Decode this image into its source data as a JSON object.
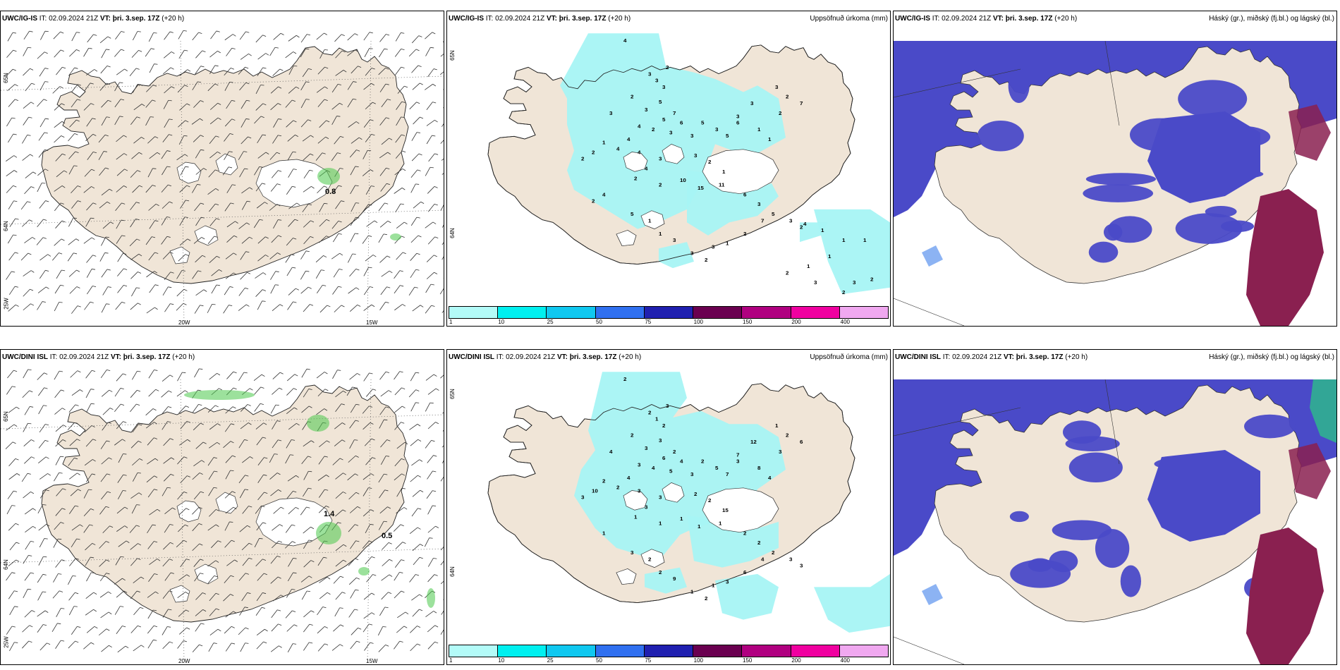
{
  "panels": [
    {
      "id": "r1c1",
      "model": "UWC/IG-IS",
      "header": {
        "it_label": "IT:",
        "it_value": "02.09.2024 21Z",
        "vt_label": "VT:",
        "vt_value": "þri. 3.sep. 17Z",
        "lead": "(+20 h)"
      },
      "title": "",
      "kind": "wind",
      "axis_labels": {
        "lat_top": "65N",
        "lat_bottom": "64N",
        "lon_left": "20W",
        "lon_right": "15W",
        "corner": "25W"
      },
      "values": [
        "0.8"
      ]
    },
    {
      "id": "r1c2",
      "model": "UWC/IG-IS",
      "header": {
        "it_label": "IT:",
        "it_value": "02.09.2024 21Z",
        "vt_label": "VT:",
        "vt_value": "þri. 3.sep. 17Z",
        "lead": "(+20 h)"
      },
      "title": "Uppsöfnuð úrkoma (mm)",
      "kind": "precip",
      "axis_labels": {
        "lat_top": "65N",
        "lat_bottom": "64N"
      },
      "values": [
        "4",
        "2",
        "3",
        "3",
        "3",
        "2",
        "5",
        "3",
        "7",
        "5",
        "6",
        "4",
        "2",
        "3",
        "3",
        "5",
        "3",
        "5",
        "6",
        "3",
        "4",
        "4",
        "4",
        "3",
        "1",
        "2",
        "2",
        "3",
        "2",
        "1",
        "3",
        "3",
        "1",
        "1",
        "2",
        "3",
        "2",
        "7",
        "4",
        "2",
        "2",
        "10",
        "15",
        "11",
        "6",
        "3",
        "5",
        "3",
        "2",
        "7",
        "2",
        "1",
        "3",
        "2",
        "3",
        "3",
        "1",
        "1",
        "5",
        "4",
        "2",
        "1",
        "1",
        "1",
        "2",
        "3",
        "2",
        "1",
        "2",
        "3",
        "4",
        "1"
      ]
    },
    {
      "id": "r1c3",
      "model": "UWC/IG-IS",
      "header": {
        "it_label": "IT:",
        "it_value": "02.09.2024 21Z",
        "vt_label": "VT:",
        "vt_value": "þri. 3.sep. 17Z",
        "lead": "(+20 h)"
      },
      "title": "Háský (gr.), miðský (fj.bl.) og lágský (bl.)",
      "kind": "cloud"
    },
    {
      "id": "r2c1",
      "model": "UWC/DINI ISL",
      "header": {
        "it_label": "IT:",
        "it_value": "02.09.2024 21Z",
        "vt_label": "VT:",
        "vt_value": "þri. 3.sep. 17Z",
        "lead": "(+20 h)"
      },
      "title": "",
      "kind": "wind",
      "axis_labels": {
        "lat_top": "65N",
        "lat_bottom": "64N",
        "lon_left": "20W",
        "lon_right": "15W",
        "corner": "25W"
      },
      "values": [
        "1.4",
        "0.5"
      ]
    },
    {
      "id": "r2c2",
      "model": "UWC/DINI ISL",
      "header": {
        "it_label": "IT:",
        "it_value": "02.09.2024 21Z",
        "vt_label": "VT:",
        "vt_value": "þri. 3.sep. 17Z",
        "lead": "(+20 h)"
      },
      "title": "Uppsöfnuð úrkoma (mm)",
      "kind": "precip",
      "axis_labels": {
        "lat_top": "65N",
        "lat_bottom": "64N"
      },
      "values": [
        "2",
        "3",
        "2",
        "1",
        "2",
        "2",
        "3",
        "3",
        "2",
        "6",
        "4",
        "3",
        "4",
        "5",
        "3",
        "2",
        "5",
        "7",
        "3",
        "4",
        "4",
        "2",
        "3",
        "3",
        "2",
        "10",
        "3",
        "2",
        "2",
        "15",
        "7",
        "12",
        "8",
        "4",
        "3",
        "1",
        "2",
        "6",
        "3",
        "1",
        "1",
        "1",
        "1",
        "1",
        "2",
        "2",
        "2",
        "3",
        "3",
        "4",
        "6",
        "3",
        "1",
        "2",
        "1",
        "9",
        "2",
        "2",
        "3",
        "1"
      ]
    },
    {
      "id": "r2c3",
      "model": "UWC/DINI ISL",
      "header": {
        "it_label": "IT:",
        "it_value": "02.09.2024 21Z",
        "vt_label": "VT:",
        "vt_value": "þri. 3.sep. 17Z",
        "lead": "(+20 h)"
      },
      "title": "Háský (gr.), miðský (fj.bl.) og lágský (bl.)",
      "kind": "cloud"
    }
  ],
  "colorbar": {
    "ticks": [
      "1",
      "10",
      "25",
      "50",
      "75",
      "100",
      "150",
      "200",
      "400"
    ],
    "colors": [
      "#b3fbf8",
      "#00f0f0",
      "#10c8f0",
      "#3070f0",
      "#2020b0",
      "#6a0050",
      "#b00080",
      "#f000a0",
      "#f0a8f0"
    ]
  },
  "colors": {
    "land": "#f0e5d7",
    "precip": "#a6f4f4",
    "cloud_low": "#4a4ac8",
    "cloud_mid": "#8a2050",
    "cloud_high": "#30b090",
    "wind_green": "#4ac84a"
  }
}
